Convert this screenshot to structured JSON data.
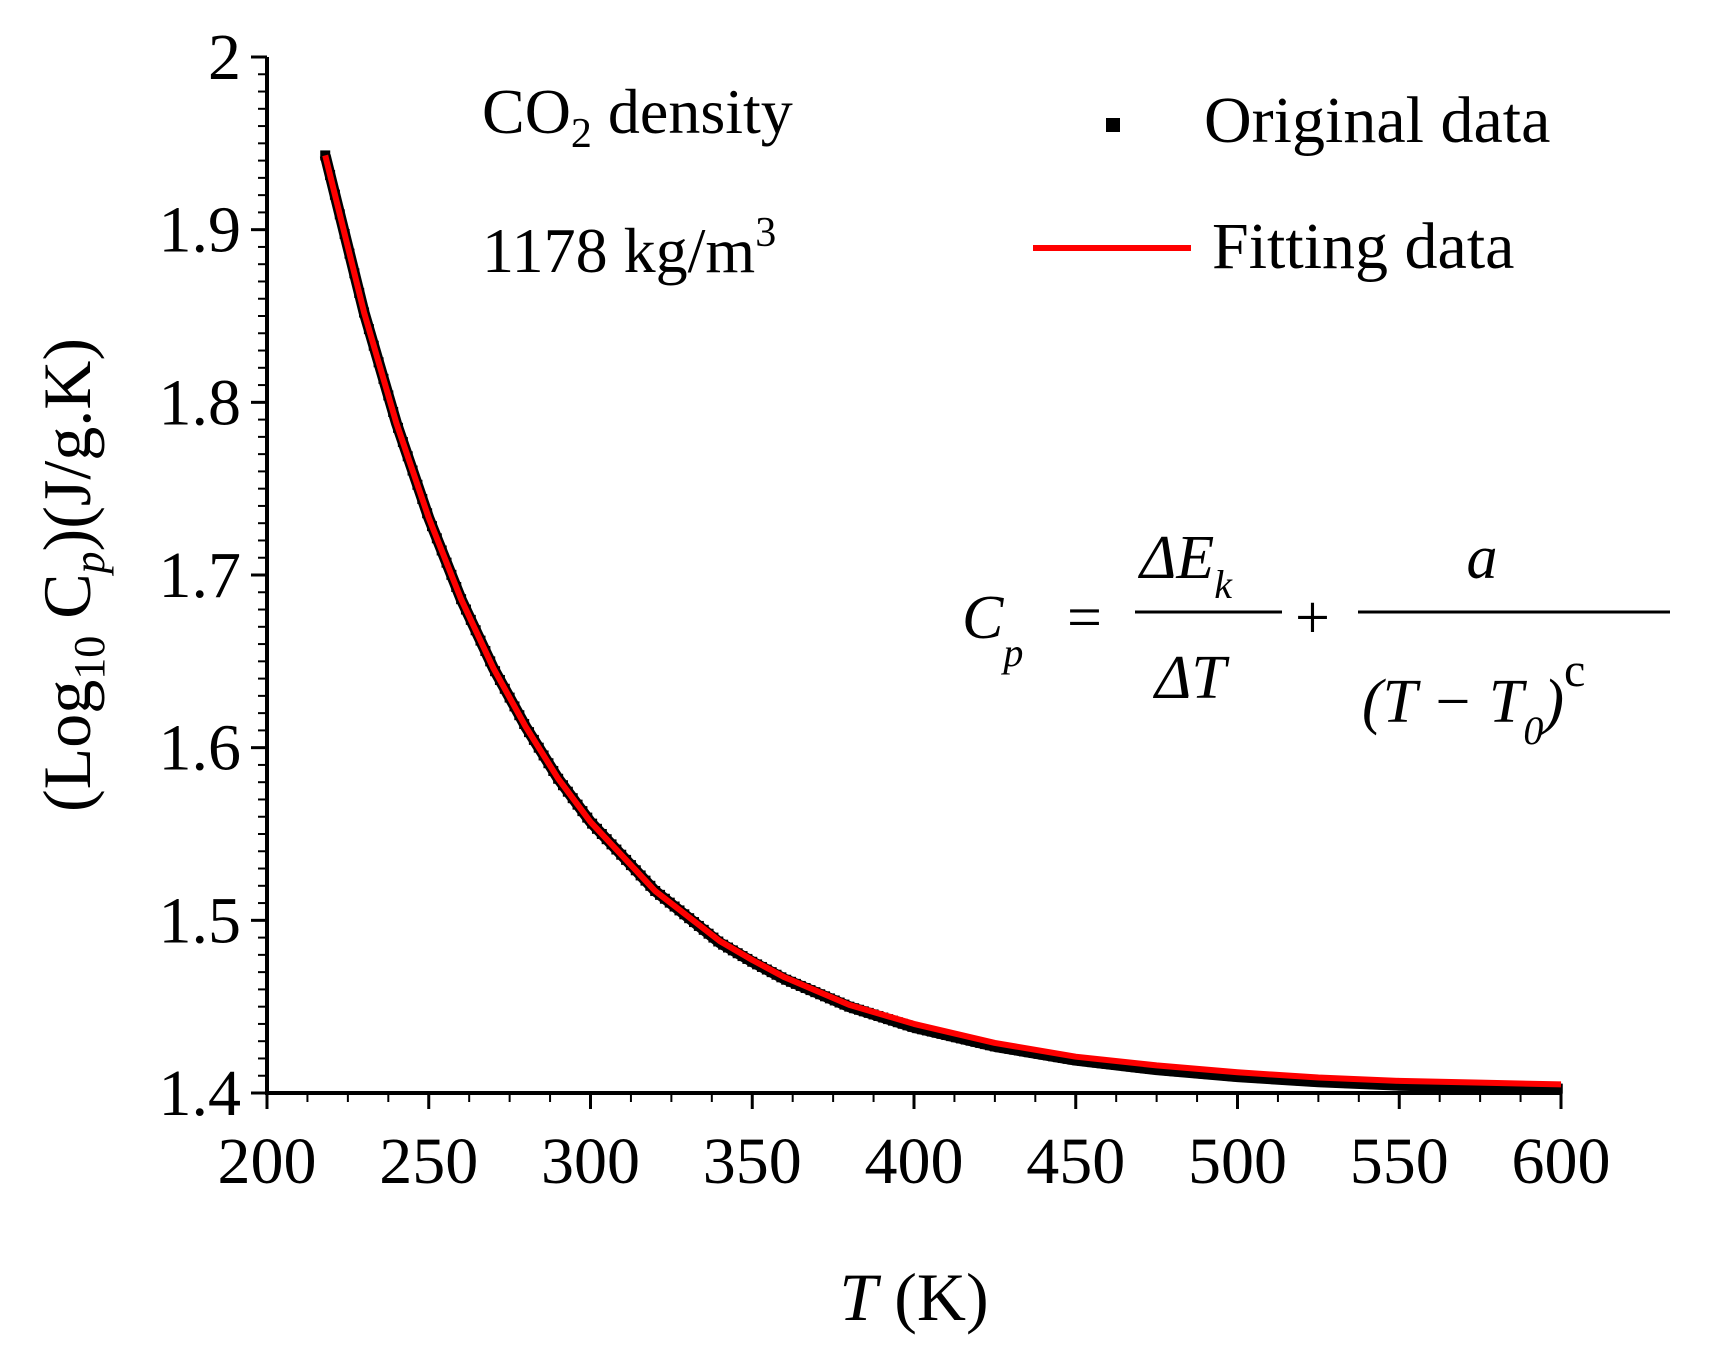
{
  "chart_data": {
    "type": "line",
    "title": "",
    "xlabel": "T (K)",
    "xlabel_parts": {
      "var": "T",
      "unit": "(K)"
    },
    "ylabel_parts": {
      "open": "(Log",
      "sub": "10",
      "c": " C",
      "p": "p",
      "rest": ")(J/g.K)"
    },
    "xlim": [
      200,
      600
    ],
    "ylim": [
      1.4,
      2.0
    ],
    "xticks": [
      200,
      250,
      300,
      350,
      400,
      450,
      500,
      550,
      600
    ],
    "xtick_labels": [
      "200",
      "250",
      "300",
      "350",
      "400",
      "450",
      "500",
      "550",
      "600"
    ],
    "yticks": [
      1.4,
      1.5,
      1.6,
      1.7,
      1.8,
      1.9,
      2.0
    ],
    "ytick_labels": [
      "1.4",
      "1.5",
      "1.6",
      "1.7",
      "1.8",
      "1.9",
      "2"
    ],
    "grid": false,
    "legend_position": "top-right",
    "series": [
      {
        "name": "Original data",
        "marker": "square",
        "color": "#000000",
        "x": [
          218,
          230,
          240,
          250,
          260,
          270,
          280,
          290,
          300,
          320,
          340,
          350,
          360,
          380,
          400,
          425,
          450,
          475,
          500,
          525,
          550,
          575,
          600
        ],
        "values": [
          1.943,
          1.852,
          1.788,
          1.733,
          1.686,
          1.646,
          1.612,
          1.582,
          1.557,
          1.517,
          1.487,
          1.476,
          1.466,
          1.45,
          1.438,
          1.427,
          1.419,
          1.4135,
          1.4095,
          1.4065,
          1.4045,
          1.4035,
          1.4025
        ]
      },
      {
        "name": "Fitting data",
        "marker": "line",
        "color": "#ff0000",
        "x": [
          218,
          230,
          240,
          250,
          260,
          270,
          280,
          290,
          300,
          320,
          340,
          350,
          360,
          380,
          400,
          425,
          450,
          475,
          500,
          525,
          550,
          575,
          600
        ],
        "values": [
          1.943,
          1.852,
          1.788,
          1.733,
          1.686,
          1.646,
          1.612,
          1.582,
          1.557,
          1.517,
          1.488,
          1.477,
          1.467,
          1.451,
          1.44,
          1.429,
          1.421,
          1.416,
          1.412,
          1.409,
          1.407,
          1.406,
          1.405
        ]
      }
    ],
    "annotations": {
      "density_label_main": "CO",
      "density_label_sub": "2",
      "density_label_rest": " density",
      "density_value": "1178 kg/m",
      "density_value_sup": "3",
      "equation": {
        "lhs": "C",
        "lhs_sub": "p",
        "equals": "=",
        "frac1_num": "ΔE",
        "frac1_num_sub": "k",
        "frac1_den": "ΔT",
        "plus": "+",
        "frac2_num": "a",
        "frac2_den_open": "(T − T",
        "frac2_den_sub": "0",
        "frac2_den_close": ")",
        "frac2_den_exp": "c"
      }
    }
  }
}
